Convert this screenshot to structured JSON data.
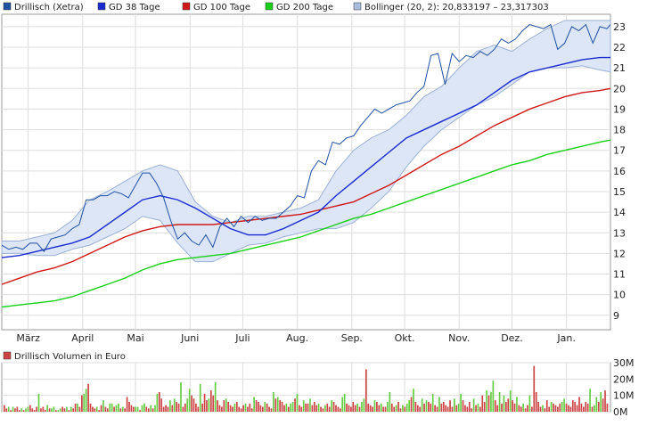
{
  "chart_data": [
    {
      "type": "line",
      "legend": {
        "placement": "top",
        "entries": [
          {
            "label": "Drillisch (Xetra)",
            "color": "#2050a0"
          },
          {
            "label": "GD 38 Tage",
            "color": "#1a2ad0"
          },
          {
            "label": "GD 100 Tage",
            "color": "#d01818"
          },
          {
            "label": "GD 200 Tage",
            "color": "#18d018"
          },
          {
            "label": "Bollinger (20, 2): 20,833197 – 23,317303",
            "color": "#aabbdd"
          }
        ]
      },
      "x_categories": [
        "März",
        "April",
        "Mai",
        "Juni",
        "Juli",
        "Aug.",
        "Sep.",
        "Okt.",
        "Nov.",
        "Dez.",
        "Jan."
      ],
      "x_range_days": [
        0,
        346
      ],
      "ylim": [
        8.3,
        23.6
      ],
      "yticks": [
        9,
        10,
        11,
        12,
        13,
        14,
        15,
        16,
        17,
        18,
        19,
        20,
        21,
        22,
        23
      ],
      "grid": true,
      "series": [
        {
          "name": "Drillisch (Xetra)",
          "color": "#2050a0",
          "x": [
            0,
            4,
            8,
            12,
            16,
            20,
            24,
            28,
            32,
            36,
            40,
            44,
            48,
            52,
            56,
            60,
            64,
            68,
            72,
            76,
            80,
            84,
            88,
            92,
            96,
            100,
            104,
            108,
            112,
            116,
            120,
            124,
            128,
            132,
            136,
            140,
            144,
            148,
            152,
            156,
            160,
            164,
            168,
            172,
            176,
            180,
            184,
            188,
            192,
            196,
            200,
            204,
            208,
            212,
            216,
            220,
            224,
            228,
            232,
            236,
            240,
            244,
            248,
            252,
            256,
            260,
            264,
            268,
            272,
            276,
            280,
            284,
            288,
            292,
            296,
            300,
            304,
            308,
            312,
            316,
            320,
            324,
            328,
            332,
            336,
            340,
            344,
            346
          ],
          "values": [
            12.4,
            12.2,
            12.3,
            12.2,
            12.5,
            12.5,
            12.1,
            12.7,
            12.8,
            12.9,
            13.2,
            13.4,
            14.6,
            14.6,
            14.8,
            14.8,
            15.0,
            14.9,
            14.7,
            15.3,
            15.9,
            15.9,
            15.4,
            14.7,
            13.6,
            12.7,
            13.0,
            12.6,
            12.4,
            12.9,
            12.3,
            13.3,
            13.7,
            13.3,
            13.8,
            13.5,
            13.8,
            13.6,
            13.7,
            13.7,
            14.0,
            14.3,
            14.8,
            14.7,
            16.0,
            16.5,
            16.3,
            17.4,
            17.3,
            17.6,
            17.7,
            18.2,
            18.6,
            19.0,
            18.8,
            19.0,
            19.2,
            19.3,
            19.4,
            19.8,
            20.1,
            21.6,
            21.7,
            20.2,
            21.7,
            21.3,
            21.6,
            21.5,
            21.8,
            21.6,
            21.9,
            22.4,
            22.2,
            22.4,
            22.8,
            23.1,
            23.0,
            22.9,
            23.1,
            21.9,
            22.2,
            23.0,
            22.8,
            23.1,
            22.2,
            23.0,
            22.9,
            23.1
          ]
        },
        {
          "name": "GD 38 Tage",
          "color": "#1a2ad0",
          "x": [
            0,
            10,
            20,
            30,
            40,
            50,
            60,
            70,
            80,
            90,
            100,
            110,
            120,
            130,
            140,
            150,
            160,
            170,
            180,
            190,
            200,
            210,
            220,
            230,
            240,
            250,
            260,
            270,
            280,
            290,
            300,
            310,
            320,
            330,
            340,
            346
          ],
          "values": [
            11.8,
            11.9,
            12.1,
            12.3,
            12.5,
            12.8,
            13.4,
            14.0,
            14.6,
            14.8,
            14.6,
            14.2,
            13.7,
            13.2,
            12.9,
            12.9,
            13.2,
            13.6,
            14.0,
            14.8,
            15.5,
            16.2,
            16.9,
            17.6,
            18.0,
            18.4,
            18.8,
            19.2,
            19.8,
            20.4,
            20.8,
            21.0,
            21.2,
            21.4,
            21.5,
            21.5
          ]
        },
        {
          "name": "GD 100 Tage",
          "color": "#d01818",
          "x": [
            0,
            10,
            20,
            30,
            40,
            50,
            60,
            70,
            80,
            90,
            100,
            110,
            120,
            130,
            140,
            150,
            160,
            170,
            180,
            190,
            200,
            210,
            220,
            230,
            240,
            250,
            260,
            270,
            280,
            290,
            300,
            310,
            320,
            330,
            340,
            346
          ],
          "values": [
            10.5,
            10.8,
            11.1,
            11.3,
            11.6,
            12.0,
            12.4,
            12.8,
            13.1,
            13.3,
            13.4,
            13.4,
            13.4,
            13.5,
            13.6,
            13.7,
            13.8,
            13.9,
            14.1,
            14.3,
            14.5,
            14.9,
            15.3,
            15.8,
            16.3,
            16.8,
            17.2,
            17.7,
            18.2,
            18.6,
            19.0,
            19.3,
            19.6,
            19.8,
            19.9,
            20.0
          ]
        },
        {
          "name": "GD 200 Tage",
          "color": "#18d018",
          "x": [
            0,
            10,
            20,
            30,
            40,
            50,
            60,
            70,
            80,
            90,
            100,
            110,
            120,
            130,
            140,
            150,
            160,
            170,
            180,
            190,
            200,
            210,
            220,
            230,
            240,
            250,
            260,
            270,
            280,
            290,
            300,
            310,
            320,
            330,
            340,
            346
          ],
          "values": [
            9.4,
            9.5,
            9.6,
            9.7,
            9.9,
            10.2,
            10.5,
            10.8,
            11.2,
            11.5,
            11.7,
            11.8,
            11.9,
            12.0,
            12.2,
            12.4,
            12.6,
            12.8,
            13.1,
            13.4,
            13.7,
            13.9,
            14.2,
            14.5,
            14.8,
            15.1,
            15.4,
            15.7,
            16.0,
            16.3,
            16.5,
            16.8,
            17.0,
            17.2,
            17.4,
            17.5
          ]
        }
      ],
      "bollinger_band": {
        "x": [
          0,
          10,
          20,
          30,
          40,
          50,
          60,
          70,
          80,
          90,
          100,
          110,
          120,
          130,
          140,
          150,
          160,
          170,
          180,
          190,
          200,
          210,
          220,
          230,
          240,
          250,
          260,
          270,
          280,
          290,
          300,
          310,
          320,
          330,
          340,
          346
        ],
        "upper": [
          12.6,
          12.6,
          12.8,
          13.0,
          13.6,
          14.6,
          15.0,
          15.5,
          16.0,
          16.3,
          16.0,
          14.5,
          13.8,
          13.5,
          13.8,
          13.8,
          14.0,
          14.2,
          14.6,
          16.0,
          17.0,
          17.6,
          18.0,
          18.7,
          19.6,
          20.1,
          21.0,
          21.8,
          22.1,
          21.8,
          22.4,
          22.9,
          23.3,
          23.3,
          23.3,
          23.3
        ],
        "lower": [
          12.0,
          12.0,
          11.9,
          11.9,
          12.2,
          12.4,
          12.8,
          13.2,
          13.8,
          13.6,
          12.5,
          11.6,
          11.6,
          12.0,
          12.4,
          12.5,
          12.8,
          13.0,
          13.2,
          13.2,
          13.5,
          14.2,
          15.0,
          16.2,
          17.2,
          18.0,
          18.6,
          19.2,
          19.6,
          20.2,
          20.8,
          21.0,
          21.0,
          21.1,
          20.9,
          20.8
        ]
      }
    },
    {
      "type": "bar",
      "title": "Drillisch Volumen in Euro",
      "ylim": [
        0,
        30
      ],
      "yticks": [
        "0M",
        "10M",
        "20M",
        "30M"
      ],
      "up_color": "#66cc44",
      "down_color": "#cc4444",
      "values": [
        4,
        2,
        3,
        1,
        3,
        2,
        3,
        1,
        2,
        1,
        2,
        3,
        4,
        2,
        1,
        3,
        11,
        2,
        3,
        1,
        4,
        2,
        2,
        3,
        1,
        1,
        2,
        3,
        2,
        3,
        1,
        3,
        2,
        5,
        5,
        3,
        10,
        11,
        14,
        17,
        5,
        3,
        2,
        3,
        1,
        4,
        7,
        3,
        2,
        5,
        5,
        3,
        4,
        5,
        2,
        3,
        2,
        9,
        6,
        4,
        3,
        3,
        3,
        1,
        4,
        5,
        3,
        2,
        4,
        2,
        4,
        11,
        12,
        8,
        3,
        4,
        3,
        7,
        4,
        8,
        6,
        5,
        18,
        3,
        5,
        8,
        14,
        10,
        8,
        5,
        3,
        17,
        5,
        11,
        7,
        8,
        13,
        10,
        18,
        7,
        4,
        3,
        7,
        8,
        6,
        4,
        3,
        5,
        6,
        3,
        2,
        4,
        5,
        3,
        5,
        2,
        9,
        7,
        6,
        4,
        3,
        6,
        5,
        3,
        2,
        12,
        8,
        9,
        7,
        6,
        4,
        5,
        3,
        5,
        6,
        8,
        11,
        4,
        3,
        7,
        5,
        5,
        8,
        4,
        6,
        4,
        5,
        3,
        2,
        4,
        5,
        3,
        7,
        6,
        4,
        3,
        2,
        9,
        11,
        5,
        4,
        3,
        6,
        4,
        5,
        3,
        6,
        8,
        26,
        5,
        4,
        3,
        7,
        6,
        4,
        5,
        3,
        3,
        6,
        12,
        5,
        3,
        4,
        6,
        2,
        4,
        3,
        5,
        7,
        9,
        14,
        6,
        4,
        3,
        8,
        5,
        7,
        6,
        5,
        11,
        4,
        3,
        9,
        5,
        6,
        4,
        3,
        7,
        3,
        8,
        4,
        5,
        11,
        7,
        4,
        3,
        6,
        2,
        8,
        4,
        5,
        3,
        10,
        6,
        13,
        10,
        12,
        19,
        7,
        4,
        12,
        5,
        10,
        6,
        8,
        13,
        7,
        5,
        9,
        4,
        3,
        5,
        2,
        4,
        10,
        3,
        28,
        12,
        6,
        3,
        4,
        2,
        7,
        3,
        6,
        5,
        4,
        3,
        5,
        6,
        8,
        5,
        4,
        3,
        7,
        6,
        4,
        9,
        5,
        3,
        6,
        5,
        14,
        3,
        4,
        9,
        6,
        12,
        8,
        13,
        5
      ]
    }
  ]
}
